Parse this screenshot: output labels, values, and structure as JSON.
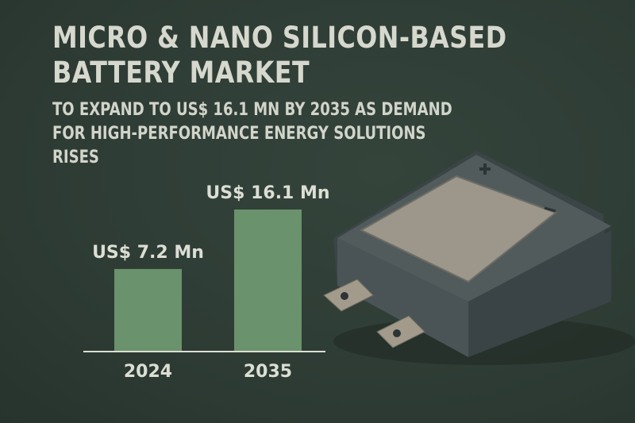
{
  "title_lines": [
    "MICRO & NANO SILICON-BASED",
    "BATTERY MARKET"
  ],
  "subtitle_lines": [
    "TO EXPAND TO US$ 16.1 MN BY 2035 AS DEMAND",
    "FOR HIGH-PERFORMANCE ENERGY SOLUTIONS",
    "RISES"
  ],
  "colors": {
    "background": "#2e3c35",
    "bar": "#6a926c",
    "text": "#dcded4"
  },
  "chart_data": {
    "type": "bar",
    "categories": [
      "2024",
      "2035"
    ],
    "values": [
      7.2,
      16.1
    ],
    "data_labels": [
      "US$ 7.2 Mn",
      "US$ 16.1 Mn"
    ],
    "unit": "US$ Mn",
    "ylim": [
      0,
      16.1
    ],
    "grid": false
  },
  "illustration": "battery-pouch-cell"
}
